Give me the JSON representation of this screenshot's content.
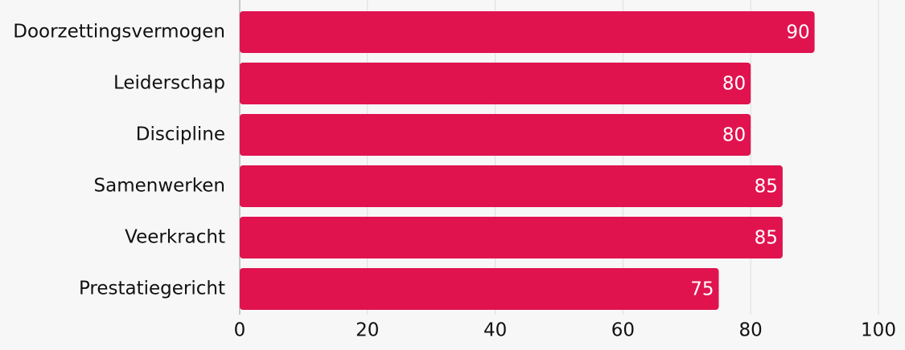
{
  "chart_data": {
    "type": "bar",
    "orientation": "horizontal",
    "categories": [
      "Doorzettingsvermogen",
      "Leiderschap",
      "Discipline",
      "Samenwerken",
      "Veerkracht",
      "Prestatiegericht"
    ],
    "values": [
      90,
      80,
      80,
      85,
      85,
      75
    ],
    "color": "#e0134f",
    "xlim": [
      0,
      100
    ],
    "xticks": [
      0,
      20,
      40,
      60,
      80,
      100
    ],
    "grid": true
  }
}
